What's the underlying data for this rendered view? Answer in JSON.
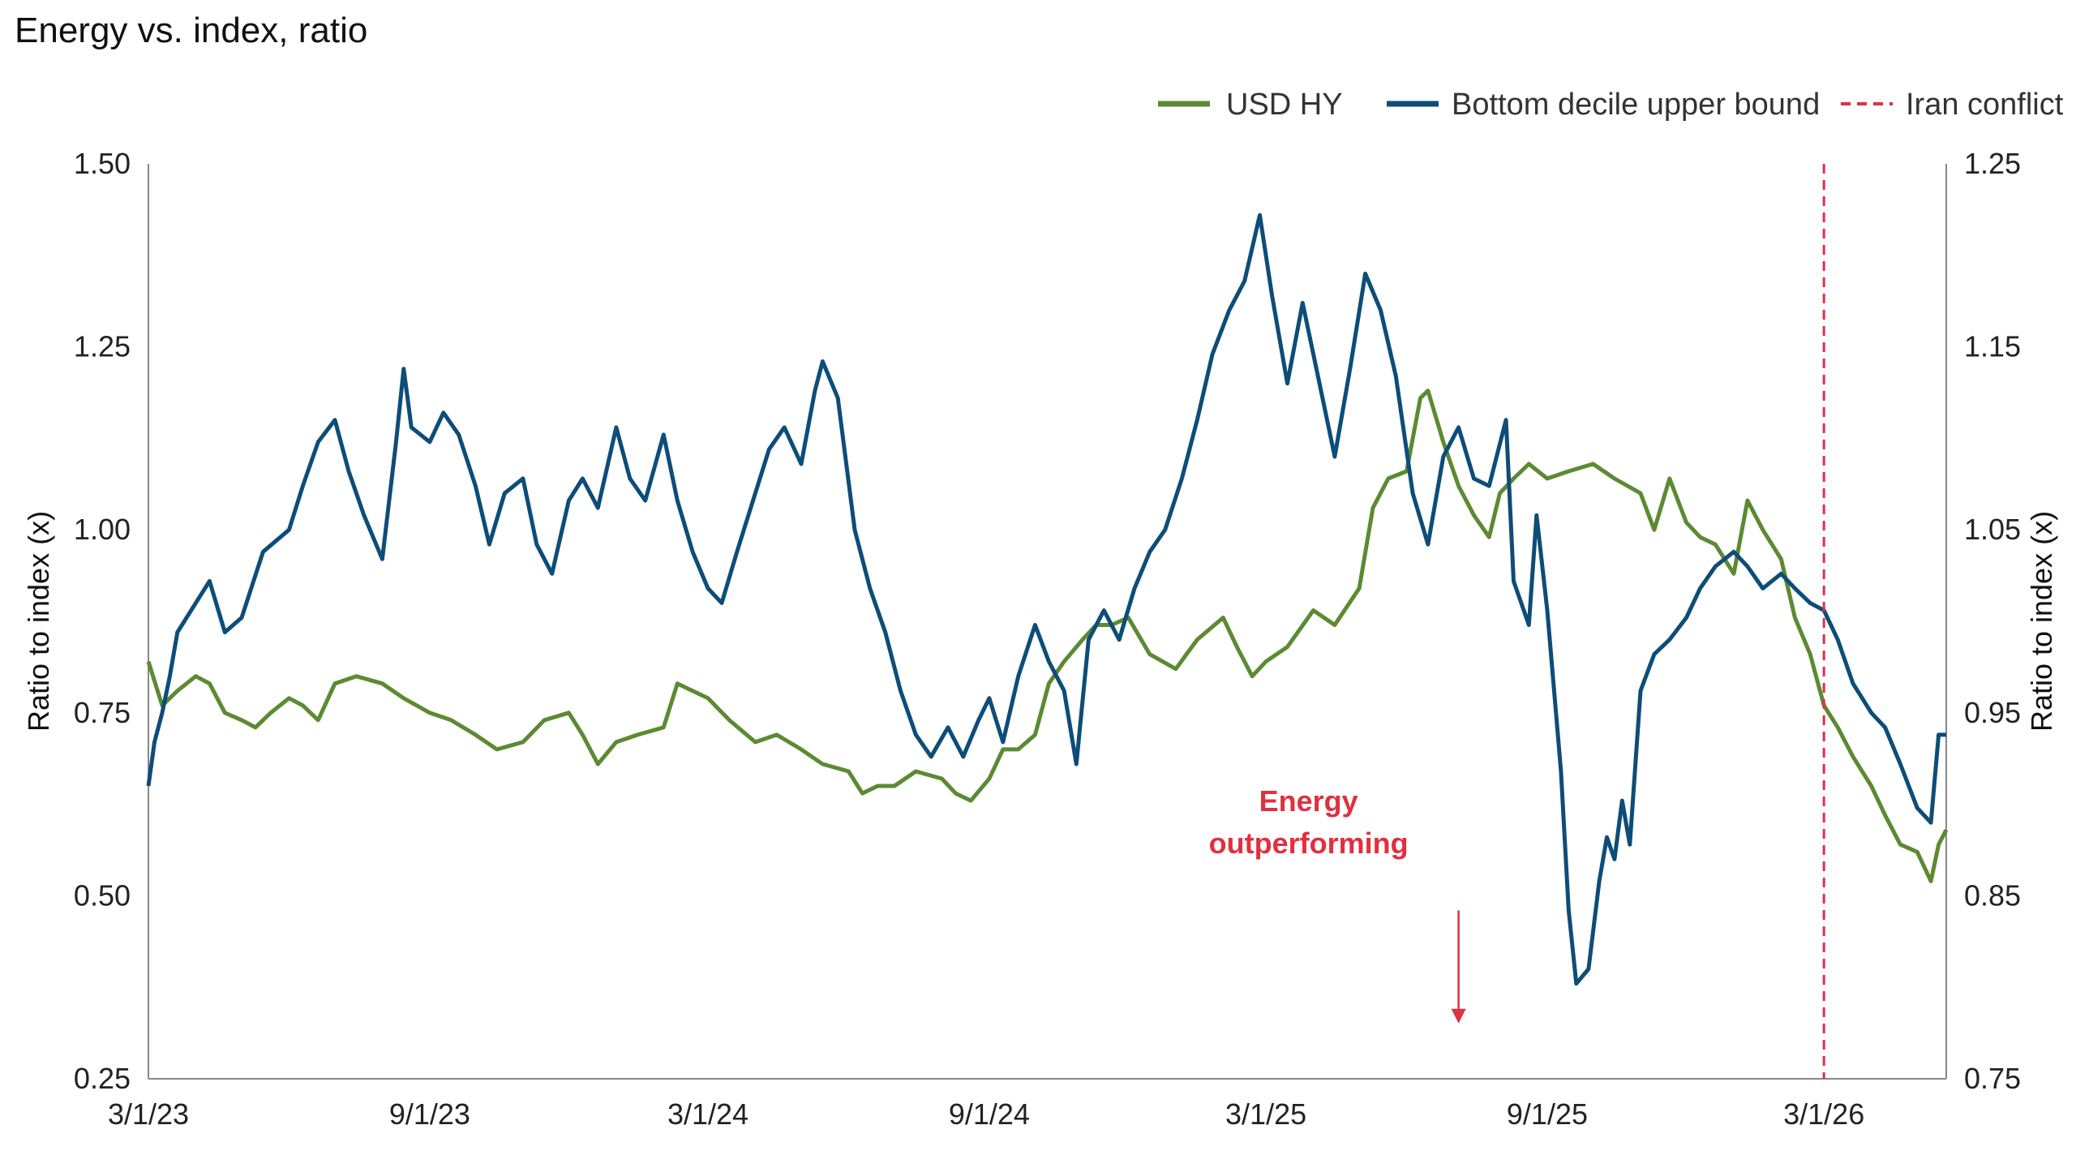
{
  "chart_data": {
    "type": "line",
    "title": "Energy vs. index, ratio",
    "ylabel_left": "Ratio to index (x)",
    "ylabel_right": "Ratio to index (x)",
    "ylim_left": [
      0.25,
      1.5
    ],
    "ylim_right": [
      0.75,
      1.25
    ],
    "yticks_left": [
      "0.25",
      "0.50",
      "0.75",
      "1.00",
      "1.25",
      "1.50"
    ],
    "yticks_right": [
      "0.75",
      "0.85",
      "0.95",
      "1.05",
      "1.15",
      "1.25"
    ],
    "xlim": [
      "2023-03-01",
      "2026-05-20"
    ],
    "xticks": [
      {
        "date": "2023-03-01",
        "label": "3/1/23"
      },
      {
        "date": "2023-09-01",
        "label": "9/1/23"
      },
      {
        "date": "2024-03-01",
        "label": "3/1/24"
      },
      {
        "date": "2024-09-01",
        "label": "9/1/24"
      },
      {
        "date": "2025-03-01",
        "label": "3/1/25"
      },
      {
        "date": "2025-09-01",
        "label": "9/1/25"
      },
      {
        "date": "2026-03-01",
        "label": "3/1/26"
      }
    ],
    "legend_position": "top-right",
    "grid": false,
    "series": [
      {
        "name": "USD HY",
        "axis": "left",
        "color": "#5c8a32",
        "points": [
          [
            "2023-03-01",
            0.82
          ],
          [
            "2023-03-10",
            0.76
          ],
          [
            "2023-03-20",
            0.78
          ],
          [
            "2023-04-01",
            0.8
          ],
          [
            "2023-04-10",
            0.79
          ],
          [
            "2023-04-20",
            0.75
          ],
          [
            "2023-05-01",
            0.74
          ],
          [
            "2023-05-10",
            0.73
          ],
          [
            "2023-05-20",
            0.75
          ],
          [
            "2023-06-01",
            0.77
          ],
          [
            "2023-06-10",
            0.76
          ],
          [
            "2023-06-20",
            0.74
          ],
          [
            "2023-07-01",
            0.79
          ],
          [
            "2023-07-15",
            0.8
          ],
          [
            "2023-08-01",
            0.79
          ],
          [
            "2023-08-15",
            0.77
          ],
          [
            "2023-09-01",
            0.75
          ],
          [
            "2023-09-15",
            0.74
          ],
          [
            "2023-10-01",
            0.72
          ],
          [
            "2023-10-15",
            0.7
          ],
          [
            "2023-11-01",
            0.71
          ],
          [
            "2023-11-15",
            0.74
          ],
          [
            "2023-12-01",
            0.75
          ],
          [
            "2023-12-10",
            0.72
          ],
          [
            "2023-12-20",
            0.68
          ],
          [
            "2024-01-01",
            0.71
          ],
          [
            "2024-01-15",
            0.72
          ],
          [
            "2024-02-01",
            0.73
          ],
          [
            "2024-02-10",
            0.79
          ],
          [
            "2024-02-20",
            0.78
          ],
          [
            "2024-03-01",
            0.77
          ],
          [
            "2024-03-15",
            0.74
          ],
          [
            "2024-04-01",
            0.71
          ],
          [
            "2024-04-15",
            0.72
          ],
          [
            "2024-05-01",
            0.7
          ],
          [
            "2024-05-15",
            0.68
          ],
          [
            "2024-06-01",
            0.67
          ],
          [
            "2024-06-10",
            0.64
          ],
          [
            "2024-06-20",
            0.65
          ],
          [
            "2024-07-01",
            0.65
          ],
          [
            "2024-07-15",
            0.67
          ],
          [
            "2024-08-01",
            0.66
          ],
          [
            "2024-08-10",
            0.64
          ],
          [
            "2024-08-20",
            0.63
          ],
          [
            "2024-09-01",
            0.66
          ],
          [
            "2024-09-10",
            0.7
          ],
          [
            "2024-09-20",
            0.7
          ],
          [
            "2024-10-01",
            0.72
          ],
          [
            "2024-10-10",
            0.79
          ],
          [
            "2024-10-20",
            0.82
          ],
          [
            "2024-11-01",
            0.85
          ],
          [
            "2024-11-10",
            0.87
          ],
          [
            "2024-11-20",
            0.87
          ],
          [
            "2024-12-01",
            0.88
          ],
          [
            "2024-12-15",
            0.83
          ],
          [
            "2025-01-01",
            0.81
          ],
          [
            "2025-01-15",
            0.85
          ],
          [
            "2025-02-01",
            0.88
          ],
          [
            "2025-02-10",
            0.84
          ],
          [
            "2025-02-20",
            0.8
          ],
          [
            "2025-03-01",
            0.82
          ],
          [
            "2025-03-15",
            0.84
          ],
          [
            "2025-04-01",
            0.89
          ],
          [
            "2025-04-15",
            0.87
          ],
          [
            "2025-05-01",
            0.92
          ],
          [
            "2025-05-10",
            1.03
          ],
          [
            "2025-05-20",
            1.07
          ],
          [
            "2025-06-01",
            1.08
          ],
          [
            "2025-06-10",
            1.18
          ],
          [
            "2025-06-15",
            1.19
          ],
          [
            "2025-06-25",
            1.12
          ],
          [
            "2025-07-05",
            1.06
          ],
          [
            "2025-07-15",
            1.02
          ],
          [
            "2025-07-25",
            0.99
          ],
          [
            "2025-08-01",
            1.05
          ],
          [
            "2025-08-10",
            1.07
          ],
          [
            "2025-08-20",
            1.09
          ],
          [
            "2025-09-01",
            1.07
          ],
          [
            "2025-09-15",
            1.08
          ],
          [
            "2025-10-01",
            1.09
          ],
          [
            "2025-10-15",
            1.07
          ],
          [
            "2025-11-01",
            1.05
          ],
          [
            "2025-11-10",
            1.0
          ],
          [
            "2025-11-20",
            1.07
          ],
          [
            "2025-12-01",
            1.01
          ],
          [
            "2025-12-10",
            0.99
          ],
          [
            "2025-12-20",
            0.98
          ],
          [
            "2026-01-01",
            0.94
          ],
          [
            "2026-01-10",
            1.04
          ],
          [
            "2026-01-20",
            1.0
          ],
          [
            "2026-02-01",
            0.96
          ],
          [
            "2026-02-10",
            0.88
          ],
          [
            "2026-02-20",
            0.83
          ],
          [
            "2026-03-01",
            0.76
          ],
          [
            "2026-03-10",
            0.73
          ],
          [
            "2026-03-20",
            0.69
          ],
          [
            "2026-04-01",
            0.65
          ],
          [
            "2026-04-10",
            0.61
          ],
          [
            "2026-04-20",
            0.57
          ],
          [
            "2026-05-01",
            0.56
          ],
          [
            "2026-05-10",
            0.52
          ],
          [
            "2026-05-15",
            0.57
          ],
          [
            "2026-05-20",
            0.59
          ]
        ]
      },
      {
        "name": "Bottom decile upper bound",
        "axis": "left",
        "color": "#0d4d78",
        "points": [
          [
            "2023-03-01",
            0.65
          ],
          [
            "2023-03-05",
            0.71
          ],
          [
            "2023-03-10",
            0.75
          ],
          [
            "2023-03-15",
            0.8
          ],
          [
            "2023-03-20",
            0.86
          ],
          [
            "2023-04-01",
            0.9
          ],
          [
            "2023-04-10",
            0.93
          ],
          [
            "2023-04-20",
            0.86
          ],
          [
            "2023-05-01",
            0.88
          ],
          [
            "2023-05-15",
            0.97
          ],
          [
            "2023-06-01",
            1.0
          ],
          [
            "2023-06-10",
            1.06
          ],
          [
            "2023-06-20",
            1.12
          ],
          [
            "2023-07-01",
            1.15
          ],
          [
            "2023-07-10",
            1.08
          ],
          [
            "2023-07-20",
            1.02
          ],
          [
            "2023-08-01",
            0.96
          ],
          [
            "2023-08-10",
            1.12
          ],
          [
            "2023-08-15",
            1.22
          ],
          [
            "2023-08-20",
            1.14
          ],
          [
            "2023-09-01",
            1.12
          ],
          [
            "2023-09-10",
            1.16
          ],
          [
            "2023-09-20",
            1.13
          ],
          [
            "2023-10-01",
            1.06
          ],
          [
            "2023-10-10",
            0.98
          ],
          [
            "2023-10-20",
            1.05
          ],
          [
            "2023-11-01",
            1.07
          ],
          [
            "2023-11-10",
            0.98
          ],
          [
            "2023-11-20",
            0.94
          ],
          [
            "2023-12-01",
            1.04
          ],
          [
            "2023-12-10",
            1.07
          ],
          [
            "2023-12-20",
            1.03
          ],
          [
            "2024-01-01",
            1.14
          ],
          [
            "2024-01-10",
            1.07
          ],
          [
            "2024-01-20",
            1.04
          ],
          [
            "2024-02-01",
            1.13
          ],
          [
            "2024-02-10",
            1.04
          ],
          [
            "2024-02-20",
            0.97
          ],
          [
            "2024-03-01",
            0.92
          ],
          [
            "2024-03-10",
            0.9
          ],
          [
            "2024-03-20",
            0.97
          ],
          [
            "2024-04-01",
            1.05
          ],
          [
            "2024-04-10",
            1.11
          ],
          [
            "2024-04-20",
            1.14
          ],
          [
            "2024-05-01",
            1.09
          ],
          [
            "2024-05-10",
            1.19
          ],
          [
            "2024-05-15",
            1.23
          ],
          [
            "2024-05-25",
            1.18
          ],
          [
            "2024-06-05",
            1.0
          ],
          [
            "2024-06-15",
            0.92
          ],
          [
            "2024-06-25",
            0.86
          ],
          [
            "2024-07-05",
            0.78
          ],
          [
            "2024-07-15",
            0.72
          ],
          [
            "2024-07-25",
            0.69
          ],
          [
            "2024-08-05",
            0.73
          ],
          [
            "2024-08-15",
            0.69
          ],
          [
            "2024-08-25",
            0.74
          ],
          [
            "2024-09-01",
            0.77
          ],
          [
            "2024-09-10",
            0.71
          ],
          [
            "2024-09-20",
            0.8
          ],
          [
            "2024-10-01",
            0.87
          ],
          [
            "2024-10-10",
            0.82
          ],
          [
            "2024-10-20",
            0.78
          ],
          [
            "2024-10-28",
            0.68
          ],
          [
            "2024-11-05",
            0.85
          ],
          [
            "2024-11-15",
            0.89
          ],
          [
            "2024-11-25",
            0.85
          ],
          [
            "2024-12-05",
            0.92
          ],
          [
            "2024-12-15",
            0.97
          ],
          [
            "2024-12-25",
            1.0
          ],
          [
            "2025-01-05",
            1.07
          ],
          [
            "2025-01-15",
            1.15
          ],
          [
            "2025-01-25",
            1.24
          ],
          [
            "2025-02-05",
            1.3
          ],
          [
            "2025-02-15",
            1.34
          ],
          [
            "2025-02-25",
            1.43
          ],
          [
            "2025-03-05",
            1.32
          ],
          [
            "2025-03-15",
            1.2
          ],
          [
            "2025-03-25",
            1.31
          ],
          [
            "2025-04-05",
            1.2
          ],
          [
            "2025-04-15",
            1.1
          ],
          [
            "2025-04-25",
            1.22
          ],
          [
            "2025-05-05",
            1.35
          ],
          [
            "2025-05-15",
            1.3
          ],
          [
            "2025-05-25",
            1.21
          ],
          [
            "2025-06-05",
            1.05
          ],
          [
            "2025-06-15",
            0.98
          ],
          [
            "2025-06-25",
            1.1
          ],
          [
            "2025-07-05",
            1.14
          ],
          [
            "2025-07-15",
            1.07
          ],
          [
            "2025-07-25",
            1.06
          ],
          [
            "2025-08-05",
            1.15
          ],
          [
            "2025-08-10",
            0.93
          ],
          [
            "2025-08-20",
            0.87
          ],
          [
            "2025-08-25",
            1.02
          ],
          [
            "2025-09-01",
            0.89
          ],
          [
            "2025-09-10",
            0.67
          ],
          [
            "2025-09-15",
            0.48
          ],
          [
            "2025-09-20",
            0.38
          ],
          [
            "2025-09-28",
            0.4
          ],
          [
            "2025-10-05",
            0.52
          ],
          [
            "2025-10-10",
            0.58
          ],
          [
            "2025-10-15",
            0.55
          ],
          [
            "2025-10-20",
            0.63
          ],
          [
            "2025-10-25",
            0.57
          ],
          [
            "2025-11-01",
            0.78
          ],
          [
            "2025-11-10",
            0.83
          ],
          [
            "2025-11-20",
            0.85
          ],
          [
            "2025-12-01",
            0.88
          ],
          [
            "2025-12-10",
            0.92
          ],
          [
            "2025-12-20",
            0.95
          ],
          [
            "2026-01-01",
            0.97
          ],
          [
            "2026-01-10",
            0.95
          ],
          [
            "2026-01-20",
            0.92
          ],
          [
            "2026-02-01",
            0.94
          ],
          [
            "2026-02-10",
            0.92
          ],
          [
            "2026-02-20",
            0.9
          ],
          [
            "2026-03-01",
            0.89
          ],
          [
            "2026-03-10",
            0.85
          ],
          [
            "2026-03-20",
            0.79
          ],
          [
            "2026-04-01",
            0.75
          ],
          [
            "2026-04-10",
            0.73
          ],
          [
            "2026-04-20",
            0.68
          ],
          [
            "2026-05-01",
            0.62
          ],
          [
            "2026-05-10",
            0.6
          ],
          [
            "2026-05-15",
            0.72
          ],
          [
            "2026-05-20",
            0.72
          ]
        ]
      }
    ],
    "event_line": {
      "name": "Iran conflict",
      "date": "2026-03-01",
      "color": "#e03040"
    },
    "annotation": {
      "lines": [
        "Energy",
        "outperforming"
      ],
      "color": "#e03040",
      "date": "2025-07-05",
      "arrow_from": 0.48,
      "arrow_to": 0.33
    }
  }
}
